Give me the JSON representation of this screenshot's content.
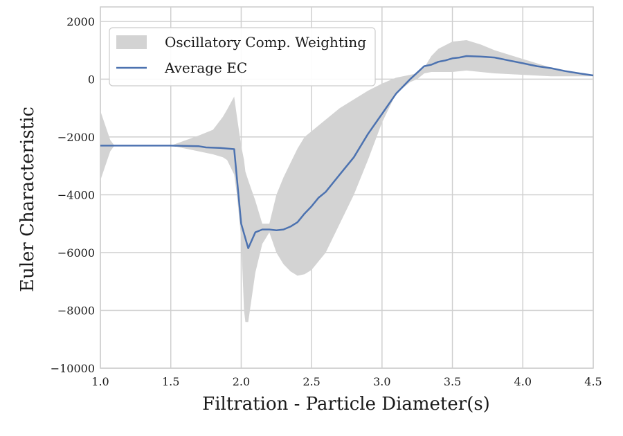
{
  "chart_data": {
    "type": "line",
    "title": "",
    "xlabel": "Filtration - Particle Diameter(s)",
    "ylabel": "Euler Characteristic",
    "xlim": [
      1.0,
      4.5
    ],
    "ylim": [
      -10000,
      2500
    ],
    "grid": true,
    "legend_position": "top-left",
    "x_ticks": [
      1.0,
      1.5,
      2.0,
      2.5,
      3.0,
      3.5,
      4.0,
      4.5
    ],
    "x_tick_labels": [
      "1.0",
      "1.5",
      "2.0",
      "2.5",
      "3.0",
      "3.5",
      "4.0",
      "4.5"
    ],
    "y_ticks": [
      -10000,
      -8000,
      -6000,
      -4000,
      -2000,
      0,
      2000
    ],
    "y_tick_labels": [
      "−10000",
      "−8000",
      "−6000",
      "−4000",
      "−2000",
      "0",
      "2000"
    ],
    "series": [
      {
        "name": "Oscillatory Comp. Weighting",
        "kind": "band",
        "color": "#d3d3d3",
        "x": [
          1.0,
          1.07,
          1.1,
          1.5,
          1.7,
          1.8,
          1.87,
          1.9,
          1.95,
          1.97,
          2.0,
          2.02,
          2.03,
          2.05,
          2.1,
          2.15,
          2.2,
          2.25,
          2.3,
          2.35,
          2.4,
          2.45,
          2.5,
          2.6,
          2.7,
          2.8,
          2.9,
          3.0,
          3.1,
          3.2,
          3.25,
          3.3,
          3.35,
          3.4,
          3.5,
          3.6,
          3.7,
          3.8,
          4.0,
          4.2,
          4.4,
          4.5
        ],
        "upper": [
          -1100,
          -2100,
          -2300,
          -2300,
          -1950,
          -1750,
          -1300,
          -1050,
          -600,
          -1300,
          -2300,
          -2800,
          -3200,
          -3500,
          -4200,
          -5000,
          -5000,
          -4000,
          -3400,
          -2900,
          -2400,
          -2000,
          -1800,
          -1400,
          -1000,
          -700,
          -400,
          -150,
          50,
          150,
          200,
          400,
          800,
          1050,
          1300,
          1350,
          1200,
          1000,
          700,
          400,
          200,
          150
        ],
        "lower": [
          -3500,
          -2500,
          -2300,
          -2300,
          -2500,
          -2600,
          -2700,
          -2800,
          -3300,
          -4000,
          -5500,
          -8000,
          -8400,
          -8400,
          -6700,
          -5700,
          -5300,
          -6000,
          -6400,
          -6650,
          -6800,
          -6750,
          -6600,
          -6000,
          -5000,
          -4000,
          -2800,
          -1500,
          -500,
          -100,
          0,
          200,
          250,
          250,
          250,
          300,
          250,
          200,
          150,
          100,
          100,
          100
        ]
      },
      {
        "name": "Average EC",
        "kind": "line",
        "color": "#4c72b0",
        "x": [
          1.0,
          1.2,
          1.4,
          1.5,
          1.7,
          1.75,
          1.85,
          1.95,
          2.0,
          2.05,
          2.1,
          2.15,
          2.2,
          2.25,
          2.3,
          2.35,
          2.4,
          2.45,
          2.5,
          2.55,
          2.6,
          2.7,
          2.8,
          2.9,
          3.0,
          3.1,
          3.2,
          3.3,
          3.35,
          3.4,
          3.45,
          3.5,
          3.55,
          3.6,
          3.7,
          3.8,
          3.9,
          4.0,
          4.1,
          4.2,
          4.3,
          4.4,
          4.5
        ],
        "y": [
          -2300,
          -2300,
          -2300,
          -2300,
          -2320,
          -2360,
          -2380,
          -2420,
          -5000,
          -5850,
          -5300,
          -5200,
          -5200,
          -5230,
          -5200,
          -5100,
          -4950,
          -4650,
          -4400,
          -4100,
          -3900,
          -3300,
          -2700,
          -1900,
          -1200,
          -500,
          0,
          450,
          500,
          600,
          650,
          720,
          750,
          800,
          780,
          750,
          650,
          550,
          450,
          380,
          280,
          200,
          130
        ]
      }
    ]
  }
}
